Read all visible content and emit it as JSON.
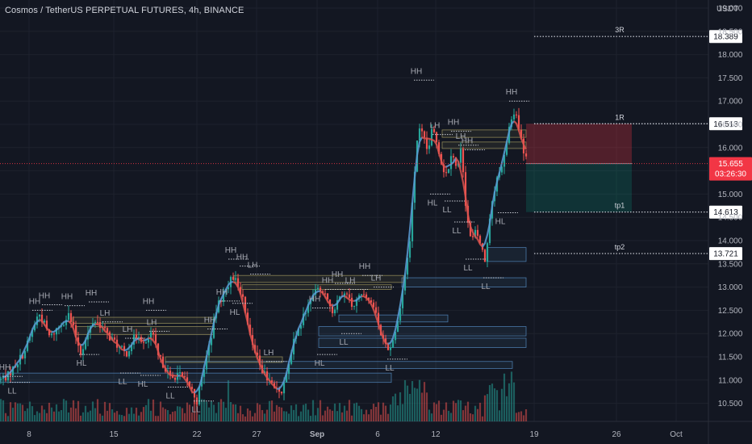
{
  "header": {
    "title": "Cosmos / TetherUS PERPETUAL FUTURES, 4h, BINANCE",
    "currency": "USDT"
  },
  "colors": {
    "background": "#131722",
    "grid": "#1e222d",
    "bull": "#26a69a",
    "bear": "#ef5350",
    "current_price_badge": "#f23645",
    "risk_zone": "#5a2a33",
    "reward_zone": "#12393a",
    "label_text": "#c5c8d0",
    "blue_curve": "#5b9bd5",
    "red_curve": "#d9534f"
  },
  "chart_data": {
    "type": "candlestick",
    "symbol": "Cosmos / TetherUS PERPETUAL FUTURES",
    "timeframe": "4h",
    "exchange": "BINANCE",
    "ylim": [
      10.3,
      19.0
    ],
    "yticks": [
      "19.000",
      "18.500",
      "18.000",
      "17.500",
      "17.000",
      "16.500",
      "16.000",
      "15.500",
      "15.000",
      "14.500",
      "14.000",
      "13.500",
      "13.000",
      "12.500",
      "12.000",
      "11.500",
      "11.000",
      "10.500"
    ],
    "x_tick_labels": [
      "8",
      "15",
      "22",
      "27",
      "Sep",
      "6",
      "12",
      "19",
      "26",
      "Oct"
    ],
    "x_tick_positions": [
      36,
      141,
      244,
      318,
      393,
      468,
      540,
      662,
      764,
      838
    ],
    "price_path": [
      [
        0,
        11.0
      ],
      [
        10,
        11.1
      ],
      [
        20,
        11.35
      ],
      [
        30,
        11.6
      ],
      [
        40,
        12.05
      ],
      [
        48,
        12.45
      ],
      [
        55,
        12.2
      ],
      [
        62,
        11.9
      ],
      [
        70,
        12.1
      ],
      [
        78,
        12.25
      ],
      [
        85,
        12.4
      ],
      [
        92,
        12.05
      ],
      [
        100,
        11.6
      ],
      [
        108,
        11.95
      ],
      [
        116,
        12.3
      ],
      [
        124,
        12.2
      ],
      [
        132,
        12.0
      ],
      [
        140,
        11.85
      ],
      [
        148,
        11.7
      ],
      [
        156,
        11.55
      ],
      [
        164,
        11.85
      ],
      [
        172,
        12.0
      ],
      [
        180,
        11.7
      ],
      [
        188,
        12.05
      ],
      [
        196,
        11.5
      ],
      [
        204,
        11.3
      ],
      [
        212,
        11.0
      ],
      [
        220,
        11.15
      ],
      [
        228,
        11.0
      ],
      [
        236,
        10.85
      ],
      [
        244,
        10.55
      ],
      [
        252,
        11.2
      ],
      [
        260,
        11.8
      ],
      [
        268,
        12.5
      ],
      [
        276,
        12.85
      ],
      [
        284,
        13.1
      ],
      [
        292,
        13.25
      ],
      [
        300,
        12.8
      ],
      [
        308,
        12.2
      ],
      [
        316,
        11.6
      ],
      [
        324,
        11.2
      ],
      [
        332,
        11.0
      ],
      [
        340,
        10.85
      ],
      [
        348,
        10.65
      ],
      [
        356,
        11.3
      ],
      [
        364,
        11.8
      ],
      [
        372,
        12.15
      ],
      [
        380,
        12.55
      ],
      [
        388,
        12.85
      ],
      [
        396,
        13.0
      ],
      [
        404,
        12.8
      ],
      [
        412,
        12.5
      ],
      [
        420,
        12.7
      ],
      [
        428,
        12.85
      ],
      [
        436,
        12.6
      ],
      [
        444,
        12.75
      ],
      [
        452,
        12.9
      ],
      [
        460,
        12.7
      ],
      [
        468,
        12.25
      ],
      [
        476,
        11.85
      ],
      [
        484,
        11.65
      ],
      [
        492,
        12.2
      ],
      [
        500,
        13.0
      ],
      [
        508,
        14.0
      ],
      [
        514,
        15.5
      ],
      [
        518,
        16.4
      ],
      [
        524,
        16.25
      ],
      [
        530,
        15.9
      ],
      [
        536,
        16.4
      ],
      [
        542,
        16.1
      ],
      [
        548,
        15.6
      ],
      [
        554,
        15.4
      ],
      [
        560,
        16.0
      ],
      [
        566,
        15.5
      ],
      [
        572,
        16.0
      ],
      [
        578,
        14.6
      ],
      [
        584,
        13.95
      ],
      [
        590,
        14.2
      ],
      [
        596,
        13.9
      ],
      [
        602,
        13.5
      ],
      [
        608,
        14.6
      ],
      [
        616,
        15.3
      ],
      [
        624,
        15.7
      ],
      [
        632,
        16.5
      ],
      [
        638,
        16.8
      ],
      [
        644,
        16.3
      ],
      [
        650,
        15.8
      ],
      [
        654,
        15.655
      ]
    ],
    "current_price": "15.655",
    "countdown": "03:26:30",
    "price_levels": [
      {
        "label": "3R",
        "price": 18.389,
        "tag": "18.389"
      },
      {
        "label": "1R",
        "price": 16.513,
        "tag": "16.513"
      },
      {
        "label": "tp1",
        "price": 14.613,
        "tag": "14.613"
      },
      {
        "label": "tp2",
        "price": 13.721,
        "tag": "13.721"
      }
    ],
    "position": {
      "entry": 15.655,
      "stop": 16.513,
      "target": 14.613
    },
    "swing_labels": [
      {
        "t": "HH",
        "x": 6,
        "p": 11.08,
        "pos": "above"
      },
      {
        "t": "HH",
        "x": 43,
        "p": 12.5,
        "pos": "above"
      },
      {
        "t": "HH",
        "x": 55,
        "p": 12.62,
        "pos": "above"
      },
      {
        "t": "HH",
        "x": 83,
        "p": 12.6,
        "pos": "above"
      },
      {
        "t": "HH",
        "x": 113,
        "p": 12.68,
        "pos": "above"
      },
      {
        "t": "HH",
        "x": 184,
        "p": 12.5,
        "pos": "above"
      },
      {
        "t": "LH",
        "x": 130,
        "p": 12.25,
        "pos": "above"
      },
      {
        "t": "LH",
        "x": 158,
        "p": 11.9,
        "pos": "above"
      },
      {
        "t": "LH",
        "x": 188,
        "p": 12.05,
        "pos": "above"
      },
      {
        "t": "HH",
        "x": 260,
        "p": 12.1,
        "pos": "above"
      },
      {
        "t": "HH",
        "x": 275,
        "p": 12.7,
        "pos": "above"
      },
      {
        "t": "HH",
        "x": 286,
        "p": 13.6,
        "pos": "above"
      },
      {
        "t": "HH",
        "x": 300,
        "p": 13.45,
        "pos": "above"
      },
      {
        "t": "LH",
        "x": 313,
        "p": 13.28,
        "pos": "above"
      },
      {
        "t": "LH",
        "x": 333,
        "p": 11.4,
        "pos": "above"
      },
      {
        "t": "HH",
        "x": 390,
        "p": 12.55,
        "pos": "above"
      },
      {
        "t": "HH",
        "x": 406,
        "p": 12.95,
        "pos": "above"
      },
      {
        "t": "HH",
        "x": 418,
        "p": 13.08,
        "pos": "above"
      },
      {
        "t": "LH",
        "x": 434,
        "p": 12.95,
        "pos": "above"
      },
      {
        "t": "HH",
        "x": 452,
        "p": 13.25,
        "pos": "above"
      },
      {
        "t": "LH",
        "x": 466,
        "p": 13.0,
        "pos": "above"
      },
      {
        "t": "HH",
        "x": 516,
        "p": 17.45,
        "pos": "above"
      },
      {
        "t": "LH",
        "x": 539,
        "p": 16.28,
        "pos": "above"
      },
      {
        "t": "HH",
        "x": 562,
        "p": 16.35,
        "pos": "above"
      },
      {
        "t": "LH",
        "x": 571,
        "p": 16.05,
        "pos": "above"
      },
      {
        "t": "HH",
        "x": 579,
        "p": 15.95,
        "pos": "above"
      },
      {
        "t": "HH",
        "x": 634,
        "p": 17.0,
        "pos": "above"
      },
      {
        "t": "LL",
        "x": 15,
        "p": 10.95,
        "pos": "below"
      },
      {
        "t": "HL",
        "x": 101,
        "p": 11.55,
        "pos": "below"
      },
      {
        "t": "LL",
        "x": 152,
        "p": 11.15,
        "pos": "below"
      },
      {
        "t": "HL",
        "x": 177,
        "p": 11.1,
        "pos": "below"
      },
      {
        "t": "LL",
        "x": 211,
        "p": 10.85,
        "pos": "below"
      },
      {
        "t": "HL",
        "x": 291,
        "p": 12.65,
        "pos": "below"
      },
      {
        "t": "LL",
        "x": 426,
        "p": 12.0,
        "pos": "below"
      },
      {
        "t": "HL",
        "x": 396,
        "p": 11.55,
        "pos": "below"
      },
      {
        "t": "HL",
        "x": 536,
        "p": 15.0,
        "pos": "below"
      },
      {
        "t": "LL",
        "x": 554,
        "p": 14.85,
        "pos": "below"
      },
      {
        "t": "LL",
        "x": 566,
        "p": 14.4,
        "pos": "below"
      },
      {
        "t": "LL",
        "x": 580,
        "p": 13.6,
        "pos": "below"
      },
      {
        "t": "LL",
        "x": 602,
        "p": 13.2,
        "pos": "below"
      },
      {
        "t": "LL",
        "x": 483,
        "p": 11.45,
        "pos": "below"
      },
      {
        "t": "LL",
        "x": 243,
        "p": 10.55,
        "pos": "below"
      },
      {
        "t": "HL",
        "x": 620,
        "p": 14.6,
        "pos": "below"
      }
    ],
    "zones": [
      {
        "x1": 0,
        "x2": 485,
        "p1": 11.15,
        "p2": 10.95,
        "color": "blue"
      },
      {
        "x1": 205,
        "x2": 635,
        "p1": 11.4,
        "p2": 11.25,
        "color": "blue"
      },
      {
        "x1": 395,
        "x2": 652,
        "p1": 12.15,
        "p2": 11.95,
        "color": "blue"
      },
      {
        "x1": 395,
        "x2": 652,
        "p1": 11.9,
        "p2": 11.7,
        "color": "blue"
      },
      {
        "x1": 420,
        "x2": 555,
        "p1": 12.4,
        "p2": 12.25,
        "color": "blue"
      },
      {
        "x1": 498,
        "x2": 652,
        "p1": 13.2,
        "p2": 13.0,
        "color": "blue"
      },
      {
        "x1": 604,
        "x2": 652,
        "p1": 13.85,
        "p2": 13.55,
        "color": "blue"
      },
      {
        "x1": 90,
        "x2": 265,
        "p1": 12.35,
        "p2": 12.22,
        "color": "yellow"
      },
      {
        "x1": 95,
        "x2": 265,
        "p1": 12.15,
        "p2": 11.98,
        "color": "yellow"
      },
      {
        "x1": 205,
        "x2": 350,
        "p1": 11.5,
        "p2": 11.38,
        "color": "yellow"
      },
      {
        "x1": 290,
        "x2": 500,
        "p1": 13.25,
        "p2": 13.1,
        "color": "yellow"
      },
      {
        "x1": 300,
        "x2": 485,
        "p1": 13.05,
        "p2": 12.95,
        "color": "yellow"
      },
      {
        "x1": 548,
        "x2": 652,
        "p1": 16.38,
        "p2": 16.22,
        "color": "yellow"
      },
      {
        "x1": 548,
        "x2": 652,
        "p1": 16.12,
        "p2": 15.98,
        "color": "yellow"
      }
    ]
  }
}
